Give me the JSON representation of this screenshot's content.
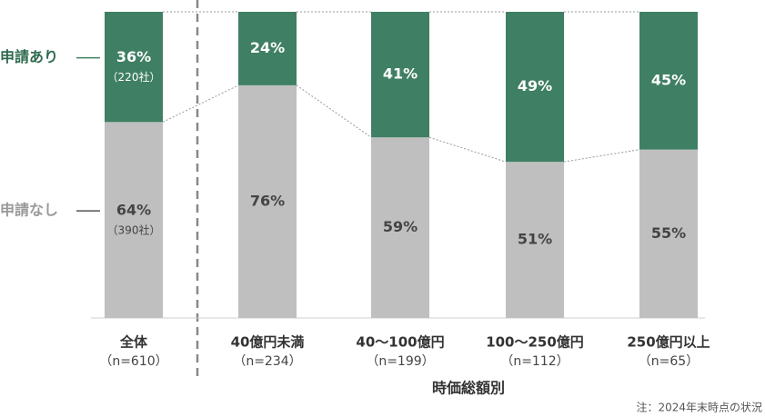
{
  "chart_data": {
    "type": "stacked_bar_percent",
    "categories": [
      "全体",
      "40億円未満",
      "40～100億円",
      "100～250億円",
      "250億円以上"
    ],
    "category_notes": [
      "（n=610）",
      "（n=234）",
      "（n=199）",
      "（n=112）",
      "（n=65）"
    ],
    "series": [
      {
        "name": "申請なし",
        "color": "#bfbfbf",
        "values": [
          64,
          76,
          59,
          51,
          55
        ],
        "value_labels": [
          "64%",
          "76%",
          "59%",
          "51%",
          "55%"
        ],
        "note": "（390社）"
      },
      {
        "name": "申請あり",
        "color": "#3f7f63",
        "values": [
          36,
          24,
          41,
          49,
          45
        ],
        "value_labels": [
          "36%",
          "24%",
          "41%",
          "49%",
          "45%"
        ],
        "note": "（220社）"
      }
    ],
    "ylim": [
      0,
      100
    ],
    "x_label": "時価総額別",
    "footnote": "注：2024年末時点の状況"
  }
}
